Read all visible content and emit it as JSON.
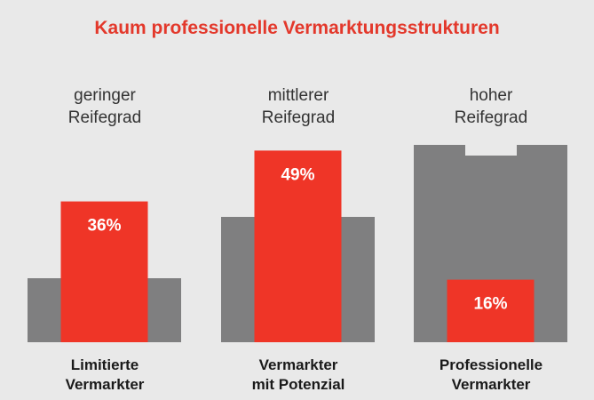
{
  "chart_data": {
    "type": "bar",
    "title": "Kaum professionelle Vermarktungsstrukturen",
    "categories": [
      {
        "line1": "geringer",
        "line2": "Reifegrad"
      },
      {
        "line1": "mittlerer",
        "line2": "Reifegrad"
      },
      {
        "line1": "hoher",
        "line2": "Reifegrad"
      }
    ],
    "labels": [
      {
        "line1": "Limitierte",
        "line2": "Vermarkter"
      },
      {
        "line1": "Vermarkter",
        "line2": "mit Potenzial"
      },
      {
        "line1": "Professionelle",
        "line2": "Vermarkter"
      }
    ],
    "values": [
      36,
      49,
      16
    ],
    "value_labels": [
      "36%",
      "49%",
      "16%"
    ],
    "unit": "%",
    "colors": {
      "highlight": "#ef3527",
      "background_shape": "#7f7f80",
      "title": "#e3382b",
      "page": "#e9e9e9"
    }
  }
}
